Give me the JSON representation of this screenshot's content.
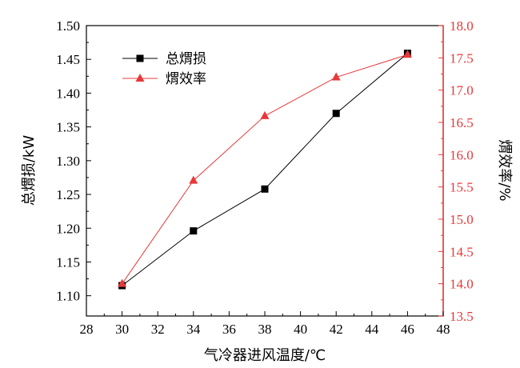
{
  "chart_data": {
    "type": "line",
    "x": [
      30,
      34,
      38,
      42,
      46
    ],
    "xlabel": "气冷器进风温度/℃",
    "xlim": [
      28,
      48
    ],
    "xticks": [
      28,
      30,
      32,
      34,
      36,
      38,
      40,
      42,
      44,
      46,
      48
    ],
    "ylabel_left": "总煟损/kW",
    "ylim_left": [
      1.07,
      1.5
    ],
    "yticks_left": [
      "1.10",
      "1.15",
      "1.20",
      "1.25",
      "1.30",
      "1.35",
      "1.40",
      "1.45",
      "1.50"
    ],
    "ylabel_right": "煟效率/%",
    "ylim_right": [
      13.5,
      18.0
    ],
    "yticks_right": [
      "13.5",
      "14.0",
      "14.5",
      "15.0",
      "15.5",
      "16.0",
      "16.5",
      "17.0",
      "17.5",
      "18.0"
    ],
    "grid": false,
    "legend_position": "top-left",
    "series": [
      {
        "name": "总煟损",
        "axis": "left",
        "marker": "square",
        "color": "#000000",
        "values": [
          1.115,
          1.196,
          1.258,
          1.37,
          1.459
        ]
      },
      {
        "name": "煟效率",
        "axis": "right",
        "marker": "triangle",
        "color": "#e8393a",
        "values": [
          14.0,
          15.6,
          16.6,
          17.2,
          17.55
        ]
      }
    ]
  },
  "colors": {
    "left_axis": "#000000",
    "right_axis": "#e8393a"
  }
}
